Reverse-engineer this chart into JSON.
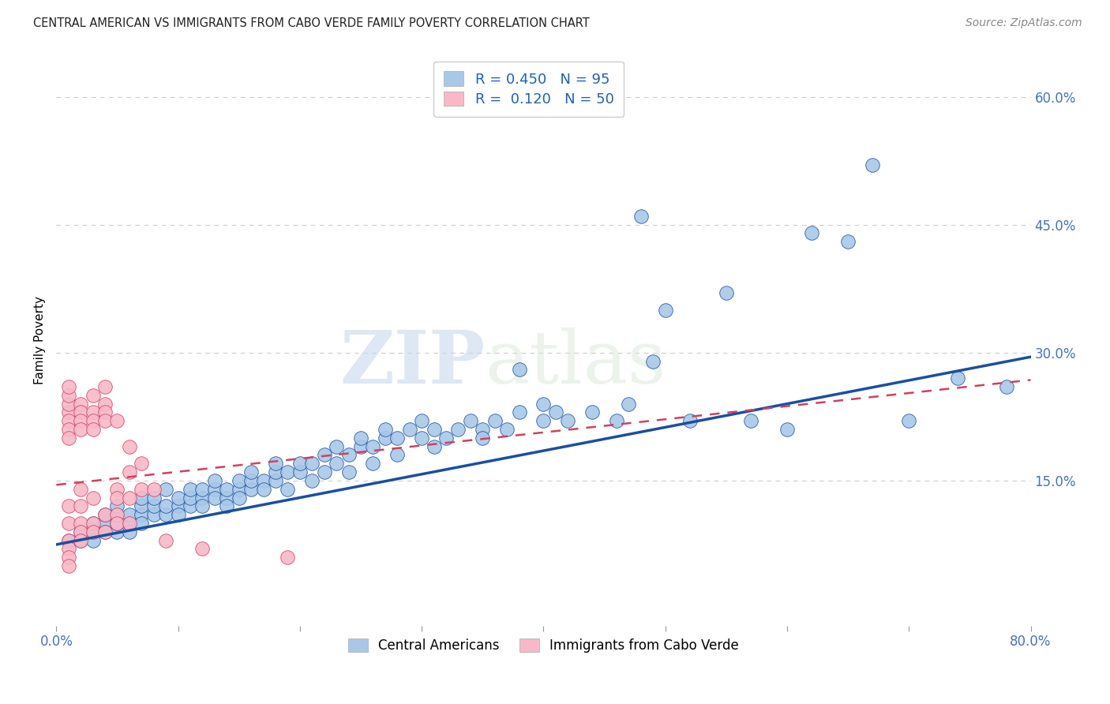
{
  "title": "CENTRAL AMERICAN VS IMMIGRANTS FROM CABO VERDE FAMILY POVERTY CORRELATION CHART",
  "source": "Source: ZipAtlas.com",
  "ylabel": "Family Poverty",
  "xmin": 0.0,
  "xmax": 0.8,
  "ymin": -0.02,
  "ymax": 0.65,
  "xticks": [
    0.0,
    0.1,
    0.2,
    0.3,
    0.4,
    0.5,
    0.6,
    0.7,
    0.8
  ],
  "xticklabels": [
    "0.0%",
    "",
    "",
    "",
    "",
    "",
    "",
    "",
    "80.0%"
  ],
  "ytick_positions": [
    0.15,
    0.3,
    0.45,
    0.6
  ],
  "ytick_labels": [
    "15.0%",
    "30.0%",
    "45.0%",
    "60.0%"
  ],
  "color_blue": "#a8c8e8",
  "color_pink": "#f8b8c8",
  "line_color_blue": "#1a4fa0",
  "line_color_pink": "#d04060",
  "watermark_zip": "ZIP",
  "watermark_atlas": "atlas",
  "scatter_blue": [
    [
      0.01,
      0.08
    ],
    [
      0.02,
      0.09
    ],
    [
      0.02,
      0.08
    ],
    [
      0.03,
      0.09
    ],
    [
      0.03,
      0.1
    ],
    [
      0.03,
      0.08
    ],
    [
      0.04,
      0.1
    ],
    [
      0.04,
      0.09
    ],
    [
      0.04,
      0.11
    ],
    [
      0.05,
      0.09
    ],
    [
      0.05,
      0.1
    ],
    [
      0.05,
      0.11
    ],
    [
      0.05,
      0.12
    ],
    [
      0.06,
      0.1
    ],
    [
      0.06,
      0.11
    ],
    [
      0.06,
      0.09
    ],
    [
      0.07,
      0.11
    ],
    [
      0.07,
      0.12
    ],
    [
      0.07,
      0.1
    ],
    [
      0.07,
      0.13
    ],
    [
      0.08,
      0.11
    ],
    [
      0.08,
      0.12
    ],
    [
      0.08,
      0.13
    ],
    [
      0.09,
      0.11
    ],
    [
      0.09,
      0.12
    ],
    [
      0.09,
      0.14
    ],
    [
      0.1,
      0.12
    ],
    [
      0.1,
      0.13
    ],
    [
      0.1,
      0.11
    ],
    [
      0.11,
      0.12
    ],
    [
      0.11,
      0.13
    ],
    [
      0.11,
      0.14
    ],
    [
      0.12,
      0.13
    ],
    [
      0.12,
      0.14
    ],
    [
      0.12,
      0.12
    ],
    [
      0.13,
      0.14
    ],
    [
      0.13,
      0.13
    ],
    [
      0.13,
      0.15
    ],
    [
      0.14,
      0.13
    ],
    [
      0.14,
      0.14
    ],
    [
      0.14,
      0.12
    ],
    [
      0.15,
      0.14
    ],
    [
      0.15,
      0.15
    ],
    [
      0.15,
      0.13
    ],
    [
      0.16,
      0.14
    ],
    [
      0.16,
      0.15
    ],
    [
      0.16,
      0.16
    ],
    [
      0.17,
      0.15
    ],
    [
      0.17,
      0.14
    ],
    [
      0.18,
      0.15
    ],
    [
      0.18,
      0.16
    ],
    [
      0.18,
      0.17
    ],
    [
      0.19,
      0.16
    ],
    [
      0.19,
      0.14
    ],
    [
      0.2,
      0.16
    ],
    [
      0.2,
      0.17
    ],
    [
      0.21,
      0.17
    ],
    [
      0.21,
      0.15
    ],
    [
      0.22,
      0.16
    ],
    [
      0.22,
      0.18
    ],
    [
      0.23,
      0.17
    ],
    [
      0.23,
      0.19
    ],
    [
      0.24,
      0.18
    ],
    [
      0.24,
      0.16
    ],
    [
      0.25,
      0.19
    ],
    [
      0.25,
      0.2
    ],
    [
      0.26,
      0.19
    ],
    [
      0.26,
      0.17
    ],
    [
      0.27,
      0.2
    ],
    [
      0.27,
      0.21
    ],
    [
      0.28,
      0.2
    ],
    [
      0.28,
      0.18
    ],
    [
      0.29,
      0.21
    ],
    [
      0.3,
      0.2
    ],
    [
      0.3,
      0.22
    ],
    [
      0.31,
      0.21
    ],
    [
      0.31,
      0.19
    ],
    [
      0.32,
      0.2
    ],
    [
      0.33,
      0.21
    ],
    [
      0.34,
      0.22
    ],
    [
      0.35,
      0.21
    ],
    [
      0.35,
      0.2
    ],
    [
      0.36,
      0.22
    ],
    [
      0.37,
      0.21
    ],
    [
      0.38,
      0.23
    ],
    [
      0.38,
      0.28
    ],
    [
      0.4,
      0.22
    ],
    [
      0.4,
      0.24
    ],
    [
      0.41,
      0.23
    ],
    [
      0.42,
      0.22
    ],
    [
      0.44,
      0.23
    ],
    [
      0.46,
      0.22
    ],
    [
      0.47,
      0.24
    ],
    [
      0.48,
      0.46
    ],
    [
      0.49,
      0.29
    ],
    [
      0.5,
      0.35
    ],
    [
      0.52,
      0.22
    ],
    [
      0.55,
      0.37
    ],
    [
      0.57,
      0.22
    ],
    [
      0.6,
      0.21
    ],
    [
      0.62,
      0.44
    ],
    [
      0.65,
      0.43
    ],
    [
      0.67,
      0.52
    ],
    [
      0.7,
      0.22
    ],
    [
      0.74,
      0.27
    ],
    [
      0.78,
      0.26
    ]
  ],
  "scatter_pink": [
    [
      0.01,
      0.23
    ],
    [
      0.01,
      0.22
    ],
    [
      0.01,
      0.24
    ],
    [
      0.01,
      0.25
    ],
    [
      0.01,
      0.26
    ],
    [
      0.01,
      0.21
    ],
    [
      0.01,
      0.2
    ],
    [
      0.01,
      0.12
    ],
    [
      0.01,
      0.1
    ],
    [
      0.01,
      0.08
    ],
    [
      0.01,
      0.07
    ],
    [
      0.01,
      0.06
    ],
    [
      0.01,
      0.05
    ],
    [
      0.02,
      0.24
    ],
    [
      0.02,
      0.23
    ],
    [
      0.02,
      0.22
    ],
    [
      0.02,
      0.21
    ],
    [
      0.02,
      0.14
    ],
    [
      0.02,
      0.12
    ],
    [
      0.02,
      0.1
    ],
    [
      0.02,
      0.09
    ],
    [
      0.02,
      0.08
    ],
    [
      0.03,
      0.25
    ],
    [
      0.03,
      0.23
    ],
    [
      0.03,
      0.22
    ],
    [
      0.03,
      0.21
    ],
    [
      0.03,
      0.13
    ],
    [
      0.03,
      0.1
    ],
    [
      0.03,
      0.09
    ],
    [
      0.04,
      0.26
    ],
    [
      0.04,
      0.24
    ],
    [
      0.04,
      0.23
    ],
    [
      0.04,
      0.22
    ],
    [
      0.04,
      0.11
    ],
    [
      0.04,
      0.09
    ],
    [
      0.05,
      0.22
    ],
    [
      0.05,
      0.14
    ],
    [
      0.05,
      0.13
    ],
    [
      0.05,
      0.11
    ],
    [
      0.05,
      0.1
    ],
    [
      0.06,
      0.19
    ],
    [
      0.06,
      0.16
    ],
    [
      0.06,
      0.13
    ],
    [
      0.06,
      0.1
    ],
    [
      0.07,
      0.17
    ],
    [
      0.07,
      0.14
    ],
    [
      0.08,
      0.14
    ],
    [
      0.09,
      0.08
    ],
    [
      0.12,
      0.07
    ],
    [
      0.19,
      0.06
    ]
  ],
  "blue_line_x0": 0.0,
  "blue_line_y0": 0.075,
  "blue_line_x1": 0.8,
  "blue_line_y1": 0.295,
  "pink_line_x0": 0.0,
  "pink_line_y0": 0.145,
  "pink_line_x1": 0.8,
  "pink_line_y1": 0.268
}
